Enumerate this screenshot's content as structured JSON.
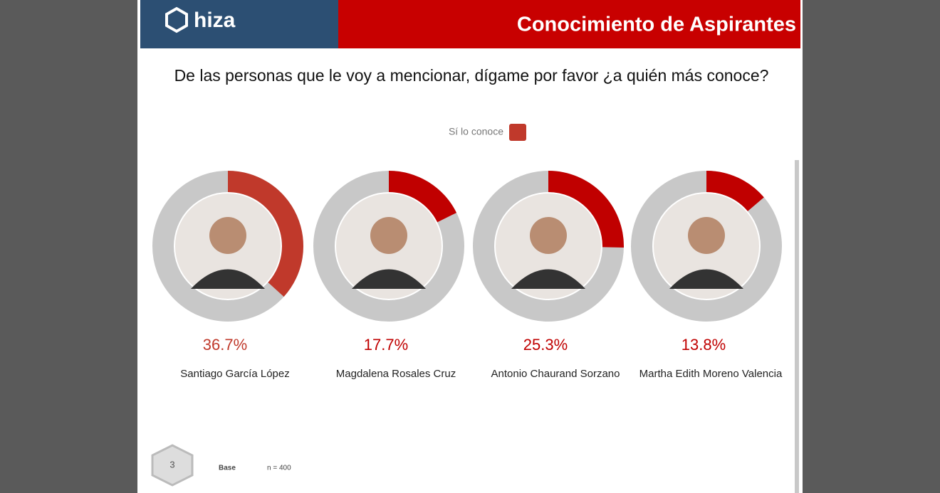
{
  "slide": {
    "logo": "hiza",
    "title": "Conocimiento de Aspirantes",
    "question": "De las personas que le voy a mencionar, dígame por favor ¿a quién más conoce?",
    "page": "3",
    "base_label": "Base",
    "base_value": "n = 400"
  },
  "chart_data": [
    {
      "type": "donut",
      "title": "Santiago García López",
      "series": [
        {
          "name": "Sí lo conoce",
          "color": "#c0392b",
          "values": [
            36.7
          ],
          "value_labels": [
            "36.7%"
          ]
        }
      ]
    },
    {
      "type": "donut",
      "title": "Magdalena Rosales Cruz",
      "series": [
        {
          "name": "Sí lo conoce",
          "color": "#c00000",
          "values": [
            17.7
          ],
          "value_labels": [
            "17.7%"
          ]
        }
      ]
    },
    {
      "type": "donut",
      "title": "Antonio Chaurand Sorzano",
      "series": [
        {
          "name": "Sí lo conoce",
          "color": "#c00000",
          "values": [
            25.3
          ],
          "value_labels": [
            "25.3%"
          ]
        }
      ]
    },
    {
      "type": "donut",
      "title": "Martha Edith Moreno Valencia",
      "series": [
        {
          "name": "Sí lo conoce",
          "color": "#c00000",
          "values": [
            13.8
          ],
          "value_labels": [
            "13.8%"
          ]
        }
      ]
    }
  ]
}
